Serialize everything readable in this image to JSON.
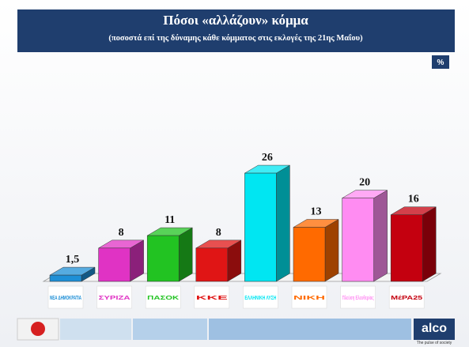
{
  "chart_data": {
    "type": "bar3d",
    "title": "Πόσοι «αλλάζουν» κόμμα",
    "subtitle": "(ποσοστά επί της δύναμης κάθε κόμματος στις εκλογές της 21ης Μαΐου)",
    "unit": "%",
    "categories": [
      "ΝΕΑ ΔΗΜΟΚΡΑΤΙΑ",
      "ΣΥΡΙΖΑ",
      "ΠΑΣΟΚ",
      "ΚΚΕ",
      "ΕΛΛΗΝΙΚΗ ΛΥΣΗ",
      "ΝΙΚΗ",
      "Πλεύση Ελευθερίας",
      "ΜέΡΑ25"
    ],
    "values": [
      1.5,
      8,
      11,
      8,
      26,
      13,
      20,
      16
    ],
    "value_labels": [
      "1,5",
      "8",
      "11",
      "8",
      "26",
      "13",
      "20",
      "16"
    ],
    "colors": [
      "#1e8fd6",
      "#e033c4",
      "#22c322",
      "#e01515",
      "#00e6f2",
      "#ff6a00",
      "#ff8cf2",
      "#c4000f"
    ],
    "ylim": [
      0,
      30
    ],
    "brand": "alco",
    "tagline": "The pulse of society"
  }
}
